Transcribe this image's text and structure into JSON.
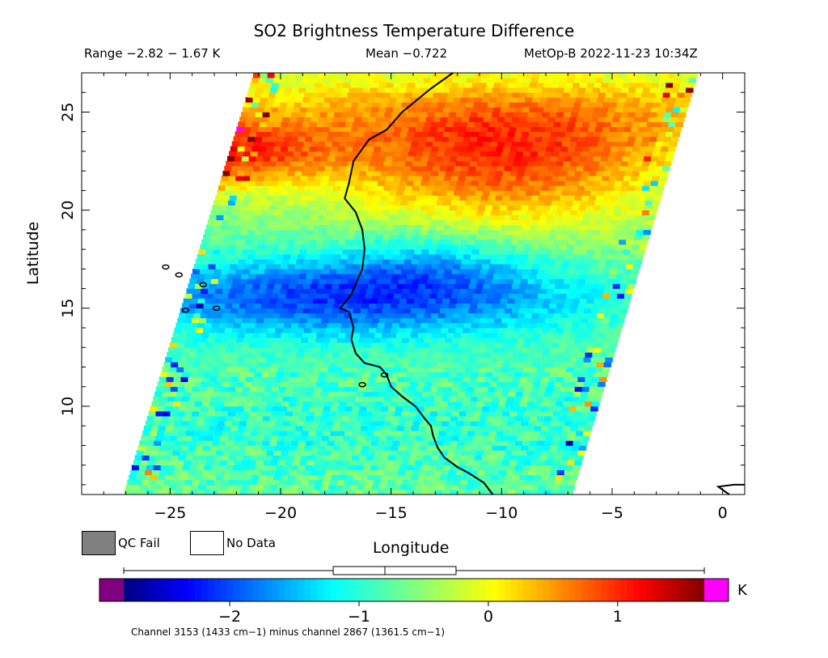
{
  "header": {
    "title": "SO2 Brightness Temperature Difference",
    "range": "Range −2.82 − 1.67 K",
    "mean": "Mean −0.722",
    "satellite_time": "MetOp-B 2022-11-23 10:34Z"
  },
  "legend": {
    "qc_fail": "QC Fail",
    "no_data": "No Data",
    "qc_fail_color": "#808080",
    "no_data_color": "#ffffff"
  },
  "colorbar": {
    "unit": "K",
    "ticks": [
      "−2",
      "−1",
      "0",
      "1"
    ],
    "tick_values": [
      -2,
      -1,
      0,
      1
    ],
    "vmin": -2.82,
    "vmax": 1.67,
    "low_color": "#800080",
    "high_color": "#ff00ff",
    "boxplot": {
      "whisker_low": -2.82,
      "q1": -1.2,
      "median": -0.8,
      "q3": -0.25,
      "whisker_high": 1.67
    }
  },
  "footnote": "Channel 3153 (1433 cm−1) minus channel 2867 (1361.5 cm−1)",
  "chart_data": {
    "type": "heatmap",
    "xlabel": "Longitude",
    "ylabel": "Latitude",
    "xlim": [
      -29,
      1
    ],
    "ylim": [
      5.5,
      27
    ],
    "xticks": [
      -25,
      -20,
      -15,
      -10,
      -5,
      0
    ],
    "xtick_labels": [
      "−25",
      "−20",
      "−15",
      "−10",
      "−5",
      "0"
    ],
    "yticks": [
      10,
      15,
      20,
      25
    ],
    "ytick_labels": [
      "10",
      "15",
      "20",
      "25"
    ],
    "swath": {
      "bottom_left": [
        -27.1,
        5.5
      ],
      "bottom_right": [
        -6.8,
        5.5
      ],
      "top_left": [
        -21.2,
        27
      ],
      "top_right": [
        -1.1,
        27
      ]
    },
    "features": [
      {
        "name": "north_high",
        "lon": [
          -26,
          -6
        ],
        "lat": [
          19,
          27
        ],
        "value": 0.8
      },
      {
        "name": "west_high_band",
        "lon": [
          -27,
          -17
        ],
        "lat": [
          21,
          24
        ],
        "value": 0.9
      },
      {
        "name": "low_band",
        "lon": [
          -26,
          -6
        ],
        "lat": [
          14,
          18
        ],
        "value": -2.1
      },
      {
        "name": "south_mixed",
        "lon": [
          -27,
          -7
        ],
        "lat": [
          5.5,
          13
        ],
        "value": -0.9
      }
    ],
    "coastline_lonlat": [
      [
        -12.2,
        27
      ],
      [
        -13.2,
        26.2
      ],
      [
        -14.5,
        25
      ],
      [
        -15.2,
        24.1
      ],
      [
        -16,
        23.6
      ],
      [
        -16.7,
        22.5
      ],
      [
        -16.9,
        21.4
      ],
      [
        -17.1,
        20.6
      ],
      [
        -16.6,
        19.9
      ],
      [
        -16.3,
        19
      ],
      [
        -16.2,
        18
      ],
      [
        -16.3,
        17
      ],
      [
        -16.5,
        16.5
      ],
      [
        -16.8,
        15.7
      ],
      [
        -17.3,
        15
      ],
      [
        -16.9,
        14.8
      ],
      [
        -16.7,
        14
      ],
      [
        -16.8,
        13.4
      ],
      [
        -16.6,
        12.7
      ],
      [
        -16.2,
        12.2
      ],
      [
        -15.5,
        12
      ],
      [
        -15.2,
        11.6
      ],
      [
        -15,
        11
      ],
      [
        -14.5,
        10.5
      ],
      [
        -13.9,
        10
      ],
      [
        -13.5,
        9.4
      ],
      [
        -13.2,
        9
      ],
      [
        -13.1,
        8.5
      ],
      [
        -12.9,
        7.9
      ],
      [
        -12.6,
        7.4
      ],
      [
        -12,
        6.9
      ],
      [
        -11.5,
        6.6
      ],
      [
        -10.8,
        6.1
      ],
      [
        -10.4,
        5.5
      ]
    ],
    "coastline_east_lonlat": [
      [
        0.3,
        5.5
      ],
      [
        -0.2,
        5.9
      ],
      [
        0.5,
        6.0
      ],
      [
        1,
        6.0
      ]
    ],
    "islands_lonlat": [
      [
        -25.2,
        17.1
      ],
      [
        -24.6,
        16.7
      ],
      [
        -23.5,
        16.2
      ],
      [
        -22.9,
        15.0
      ],
      [
        -24.3,
        14.9
      ],
      [
        -15.3,
        11.6
      ],
      [
        -16.3,
        11.1
      ]
    ]
  }
}
